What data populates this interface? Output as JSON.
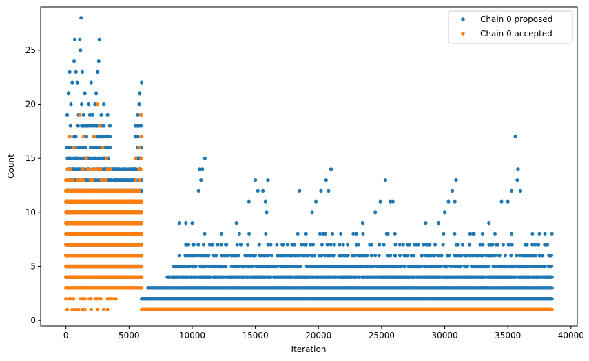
{
  "chart_data": {
    "type": "scatter",
    "title": "",
    "xlabel": "Iteration",
    "ylabel": "Count",
    "xlim": [
      -2000,
      40500
    ],
    "ylim": [
      -0.5,
      29
    ],
    "xticks": [
      0,
      5000,
      10000,
      15000,
      20000,
      25000,
      30000,
      35000,
      40000
    ],
    "yticks": [
      0,
      5,
      10,
      15,
      20,
      25
    ],
    "legend_position": "top-right",
    "series": [
      {
        "name": "Chain 0 proposed",
        "color": "#1f77b4",
        "segments": [
          {
            "x_start": 0,
            "x_end": 6000,
            "x_step": 25,
            "y_levels": [
              4,
              5,
              6,
              7,
              8,
              9,
              10,
              11,
              12
            ],
            "density": 1.0
          },
          {
            "x_start": 0,
            "x_end": 6000,
            "x_step": 25,
            "y_levels": [
              13,
              14
            ],
            "density": 0.45
          },
          {
            "x_start": 0,
            "x_end": 3500,
            "x_step": 40,
            "y_levels": [
              15,
              16
            ],
            "density": 0.35
          },
          {
            "x_start": 0,
            "x_end": 3500,
            "x_step": 60,
            "y_levels": [
              17,
              18
            ],
            "density": 0.2
          },
          {
            "x_start": 5500,
            "x_end": 6000,
            "x_step": 40,
            "y_levels": [
              15,
              16,
              17,
              18
            ],
            "density": 0.35
          },
          {
            "x_start": 6000,
            "x_end": 38500,
            "x_step": 25,
            "y_levels": [
              2
            ],
            "density": 1.0
          },
          {
            "x_start": 6500,
            "x_end": 38500,
            "x_step": 25,
            "y_levels": [
              3
            ],
            "density": 0.85
          },
          {
            "x_start": 8000,
            "x_end": 38500,
            "x_step": 25,
            "y_levels": [
              4
            ],
            "density": 0.65
          },
          {
            "x_start": 8500,
            "x_end": 38500,
            "x_step": 35,
            "y_levels": [
              5
            ],
            "density": 0.45
          },
          {
            "x_start": 9000,
            "x_end": 38500,
            "x_step": 50,
            "y_levels": [
              6
            ],
            "density": 0.3
          },
          {
            "x_start": 9500,
            "x_end": 38500,
            "x_step": 70,
            "y_levels": [
              7
            ],
            "density": 0.2
          },
          {
            "x_start": 10000,
            "x_end": 38500,
            "x_step": 110,
            "y_levels": [
              8
            ],
            "density": 0.12
          }
        ],
        "points": [
          [
            100,
            19
          ],
          [
            200,
            21
          ],
          [
            300,
            23
          ],
          [
            400,
            20
          ],
          [
            500,
            22
          ],
          [
            650,
            24
          ],
          [
            700,
            26
          ],
          [
            800,
            23
          ],
          [
            900,
            22
          ],
          [
            1000,
            19
          ],
          [
            1100,
            26
          ],
          [
            1150,
            25
          ],
          [
            1200,
            28
          ],
          [
            1250,
            20
          ],
          [
            1300,
            23
          ],
          [
            1400,
            19
          ],
          [
            1500,
            21
          ],
          [
            1800,
            20
          ],
          [
            1900,
            19
          ],
          [
            2000,
            22
          ],
          [
            2100,
            19
          ],
          [
            2300,
            20
          ],
          [
            2400,
            21
          ],
          [
            2500,
            23
          ],
          [
            2600,
            24
          ],
          [
            2650,
            26
          ],
          [
            2800,
            19
          ],
          [
            3000,
            20
          ],
          [
            3300,
            19
          ],
          [
            5700,
            19
          ],
          [
            5800,
            20
          ],
          [
            5850,
            21
          ],
          [
            5950,
            19
          ],
          [
            6000,
            22
          ],
          [
            9000,
            9
          ],
          [
            9500,
            9
          ],
          [
            10000,
            9
          ],
          [
            10500,
            12
          ],
          [
            10600,
            14
          ],
          [
            10700,
            13
          ],
          [
            10800,
            14
          ],
          [
            11000,
            15
          ],
          [
            13500,
            9
          ],
          [
            14500,
            11
          ],
          [
            15000,
            13
          ],
          [
            15200,
            12
          ],
          [
            15600,
            12
          ],
          [
            15800,
            11
          ],
          [
            15900,
            10
          ],
          [
            16000,
            13
          ],
          [
            18500,
            12
          ],
          [
            19500,
            10
          ],
          [
            19800,
            11
          ],
          [
            20200,
            12
          ],
          [
            20600,
            13
          ],
          [
            20800,
            12
          ],
          [
            21000,
            14
          ],
          [
            23000,
            8
          ],
          [
            23500,
            9
          ],
          [
            24500,
            10
          ],
          [
            24900,
            11
          ],
          [
            25300,
            13
          ],
          [
            25700,
            11
          ],
          [
            25900,
            11
          ],
          [
            28500,
            9
          ],
          [
            29500,
            9
          ],
          [
            30000,
            10
          ],
          [
            30300,
            11
          ],
          [
            30600,
            12
          ],
          [
            30800,
            11
          ],
          [
            30900,
            13
          ],
          [
            33500,
            9
          ],
          [
            34500,
            11
          ],
          [
            35000,
            11
          ],
          [
            35300,
            12
          ],
          [
            35600,
            17
          ],
          [
            35750,
            13
          ],
          [
            35800,
            14
          ],
          [
            36000,
            12
          ],
          [
            38500,
            8
          ]
        ]
      },
      {
        "name": "Chain 0 accepted",
        "color": "#ff7f0e",
        "segments": [
          {
            "x_start": 0,
            "x_end": 6000,
            "x_step": 25,
            "y_levels": [
              3,
              4,
              5,
              6,
              7,
              8,
              9,
              10,
              11
            ],
            "density": 1.0
          },
          {
            "x_start": 0,
            "x_end": 6000,
            "x_step": 40,
            "y_levels": [
              12
            ],
            "density": 0.55
          },
          {
            "x_start": 0,
            "x_end": 4000,
            "x_step": 60,
            "y_levels": [
              2
            ],
            "density": 0.4
          },
          {
            "x_start": 0,
            "x_end": 3500,
            "x_step": 70,
            "y_levels": [
              13,
              14
            ],
            "density": 0.3
          },
          {
            "x_start": 5500,
            "x_end": 6000,
            "x_step": 60,
            "y_levels": [
              13,
              14,
              15
            ],
            "density": 0.35
          },
          {
            "x_start": 6000,
            "x_end": 38500,
            "x_step": 20,
            "y_levels": [
              1
            ],
            "density": 1.0
          }
        ],
        "points": [
          [
            100,
            1
          ],
          [
            500,
            1
          ],
          [
            800,
            1
          ],
          [
            1000,
            1
          ],
          [
            1300,
            1
          ],
          [
            1500,
            1
          ],
          [
            2000,
            1
          ],
          [
            2500,
            1
          ],
          [
            3000,
            1
          ],
          [
            3300,
            1
          ],
          [
            300,
            17
          ],
          [
            600,
            16
          ],
          [
            1100,
            19
          ],
          [
            1400,
            17
          ],
          [
            1600,
            15
          ],
          [
            2200,
            17
          ],
          [
            2500,
            20
          ],
          [
            2700,
            18
          ],
          [
            2900,
            16
          ],
          [
            3200,
            15
          ],
          [
            5800,
            16
          ],
          [
            5950,
            19
          ],
          [
            6000,
            17
          ]
        ]
      }
    ]
  }
}
